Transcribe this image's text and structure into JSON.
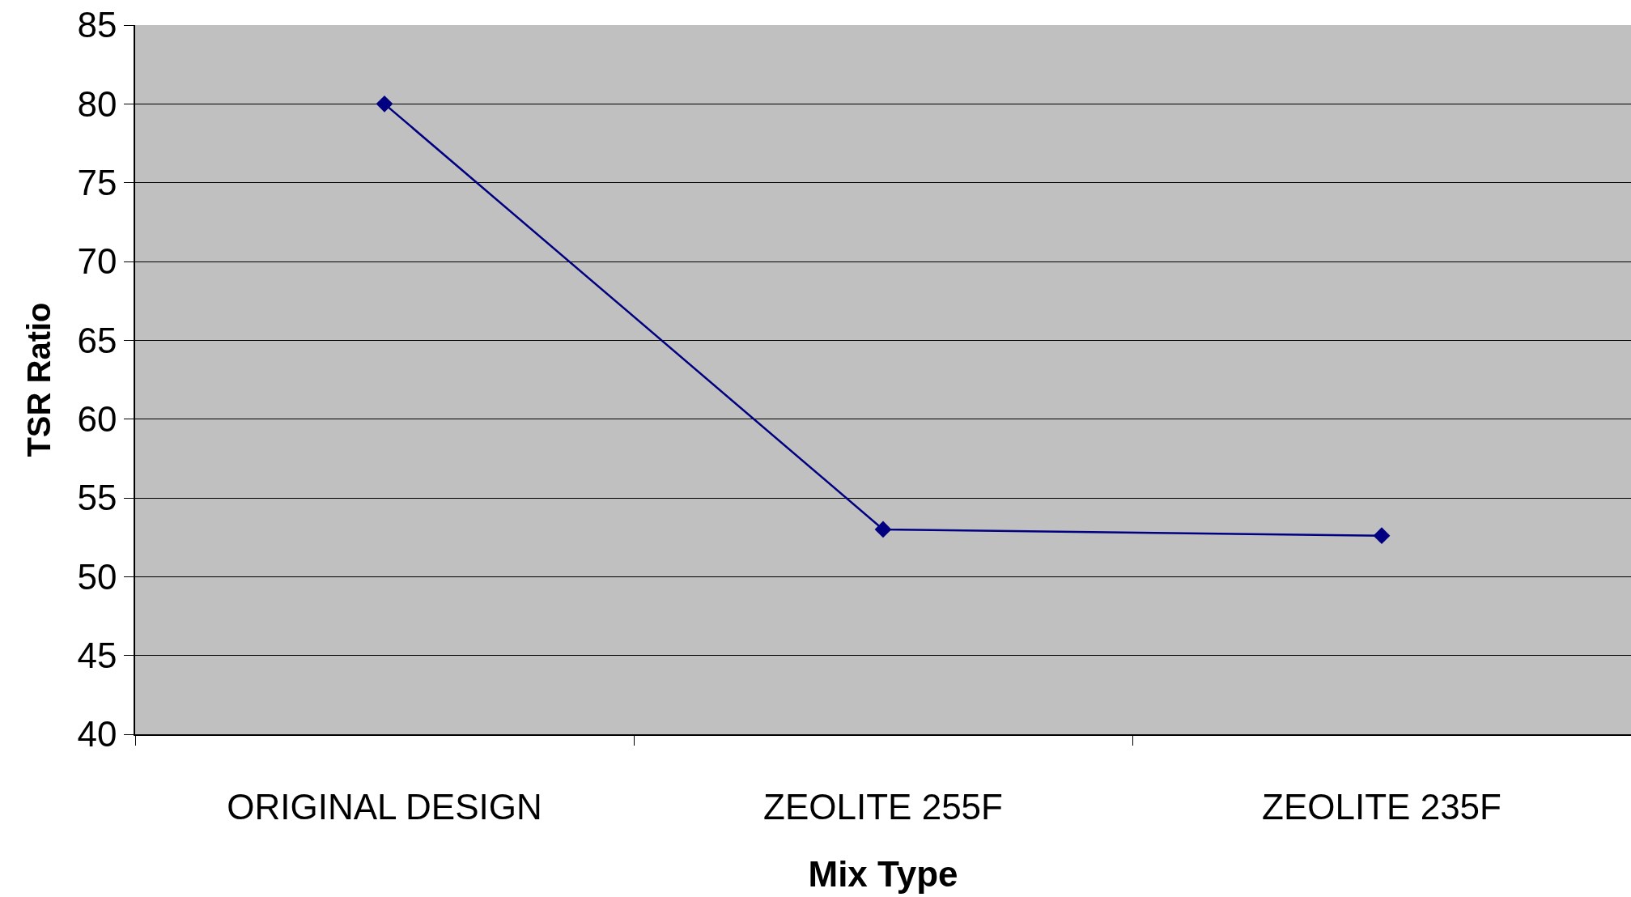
{
  "chart_data": {
    "type": "line",
    "xlabel": "Mix Type",
    "ylabel": "TSR Ratio",
    "categories": [
      "ORIGINAL DESIGN",
      "ZEOLITE 255F",
      "ZEOLITE 235F"
    ],
    "series": [
      {
        "color": "#000080",
        "values": [
          80,
          53,
          52.6
        ]
      }
    ],
    "ylim": [
      40,
      85
    ],
    "yticks": [
      40,
      45,
      50,
      55,
      60,
      65,
      70,
      75,
      80,
      85
    ],
    "grid": "y",
    "marker": "diamond",
    "line_style": "solid"
  }
}
